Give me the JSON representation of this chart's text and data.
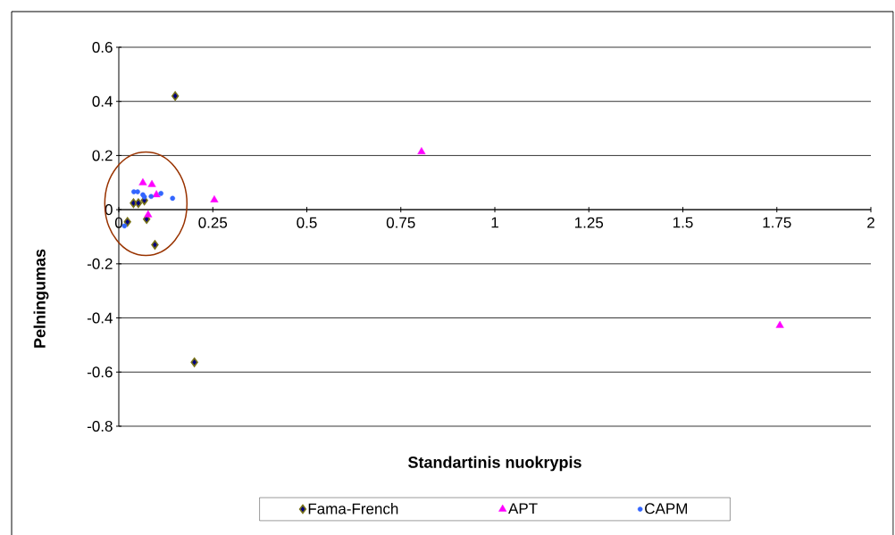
{
  "chart_data": {
    "type": "scatter",
    "xlabel": "Standartinis nuokrypis",
    "ylabel": "Pelningumas",
    "xlim": [
      0,
      2
    ],
    "xticks": [
      0,
      0.25,
      0.5,
      0.75,
      1,
      1.25,
      1.5,
      1.75,
      2
    ],
    "ylim": [
      -0.8,
      0.6
    ],
    "yticks": [
      -0.8,
      -0.6,
      -0.4,
      -0.2,
      0,
      0.2,
      0.4,
      0.6
    ],
    "grid": "y",
    "legend": "bottom",
    "series": [
      {
        "name": "Fama-French",
        "color": "#000080",
        "marker": "diamond",
        "x": [
          0.15,
          0.023,
          0.039,
          0.048,
          0.052,
          0.068,
          0.074,
          0.096,
          0.201
        ],
        "values": [
          0.42,
          -0.045,
          0.024,
          null,
          0.024,
          0.034,
          -0.035,
          -0.13,
          -0.564
        ]
      },
      {
        "name": "APT",
        "color": "#ff00ff",
        "marker": "triangle",
        "x": [
          0.064,
          0.088,
          0.1,
          0.078,
          0.254,
          0.805,
          1.758
        ],
        "values": [
          0.099,
          0.093,
          0.055,
          -0.019,
          0.036,
          0.214,
          -0.428
        ]
      },
      {
        "name": "CAPM",
        "color": "#3366ff",
        "marker": "circle",
        "x": [
          0.04,
          0.05,
          0.064,
          0.068,
          0.086,
          0.112,
          0.143,
          0.015
        ],
        "values": [
          0.066,
          0.066,
          0.055,
          0.047,
          0.049,
          0.06,
          0.042,
          -0.06
        ]
      }
    ]
  }
}
